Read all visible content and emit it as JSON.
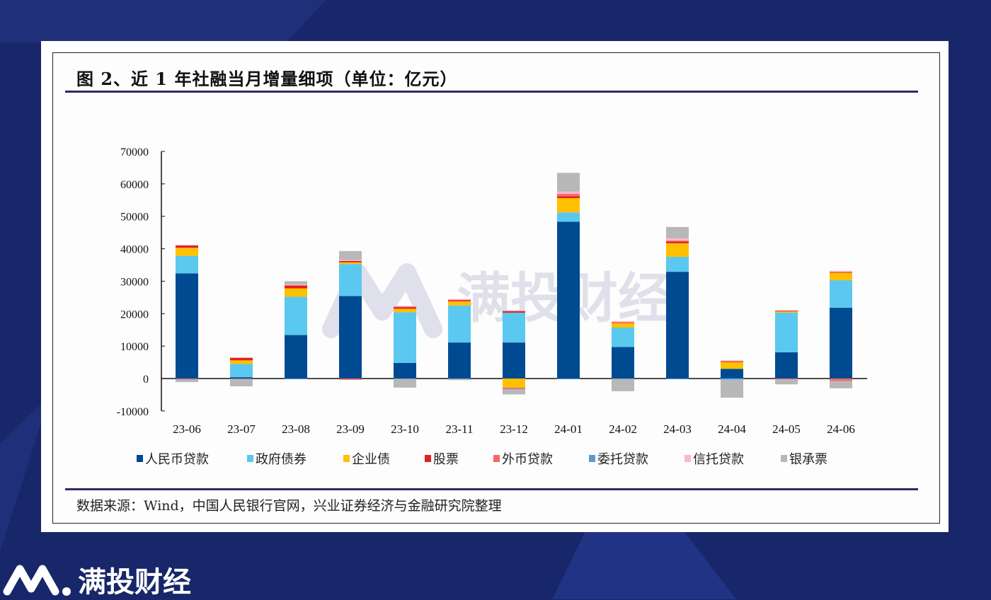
{
  "title": "图 2、近 1 年社融当月增量细项（单位：亿元）",
  "source": "数据来源：Wind，中国人民银行官网，兴业证券经济与金融研究院整理",
  "watermark": "满投财经",
  "brand": {
    "name": "满投财经"
  },
  "chart_data": {
    "type": "bar",
    "stacked": true,
    "title": "图 2、近 1 年社融当月增量细项（单位：亿元）",
    "ylim": [
      -10000,
      70000
    ],
    "yticks": [
      -10000,
      0,
      10000,
      20000,
      30000,
      40000,
      50000,
      60000,
      70000
    ],
    "legend_position": "bottom",
    "grid": false,
    "categories": [
      "23-06",
      "23-07",
      "23-08",
      "23-09",
      "23-10",
      "23-11",
      "23-12",
      "24-01",
      "24-02",
      "24-03",
      "24-04",
      "24-05",
      "24-06"
    ],
    "series": [
      {
        "name": "人民币贷款",
        "color": "#004a91",
        "values": [
          32400,
          400,
          13400,
          25400,
          4800,
          11100,
          11100,
          48300,
          9700,
          32900,
          3000,
          8100,
          21800
        ]
      },
      {
        "name": "政府债券",
        "color": "#5bc8f0",
        "values": [
          5400,
          4100,
          11800,
          9900,
          15600,
          11400,
          9200,
          2900,
          6000,
          4600,
          -300,
          12200,
          8500
        ]
      },
      {
        "name": "企业债",
        "color": "#ffc000",
        "values": [
          2500,
          1100,
          2600,
          500,
          1100,
          1300,
          -2800,
          4400,
          1400,
          4200,
          2200,
          500,
          2300
        ]
      },
      {
        "name": "股票",
        "color": "#e02020",
        "values": [
          800,
          800,
          800,
          400,
          500,
          300,
          500,
          600,
          200,
          500,
          100,
          100,
          200
        ]
      },
      {
        "name": "外币贷款",
        "color": "#f06a6a",
        "values": [
          -200,
          -100,
          300,
          -400,
          200,
          200,
          -400,
          700,
          100,
          300,
          200,
          -200,
          -800
        ]
      },
      {
        "name": "委托贷款",
        "color": "#5b9bd5",
        "values": [
          -100,
          -100,
          -100,
          0,
          -100,
          -100,
          -100,
          -100,
          -100,
          -100,
          -100,
          0,
          0
        ]
      },
      {
        "name": "信托贷款",
        "color": "#ffb6c8",
        "values": [
          100,
          0,
          100,
          300,
          200,
          200,
          200,
          700,
          300,
          700,
          100,
          200,
          400
        ]
      },
      {
        "name": "银承票",
        "color": "#b8b8b8",
        "values": [
          -800,
          -2200,
          1000,
          2800,
          -2700,
          -400,
          -1600,
          5800,
          -3800,
          3500,
          -5500,
          -1600,
          -2200
        ]
      }
    ]
  }
}
